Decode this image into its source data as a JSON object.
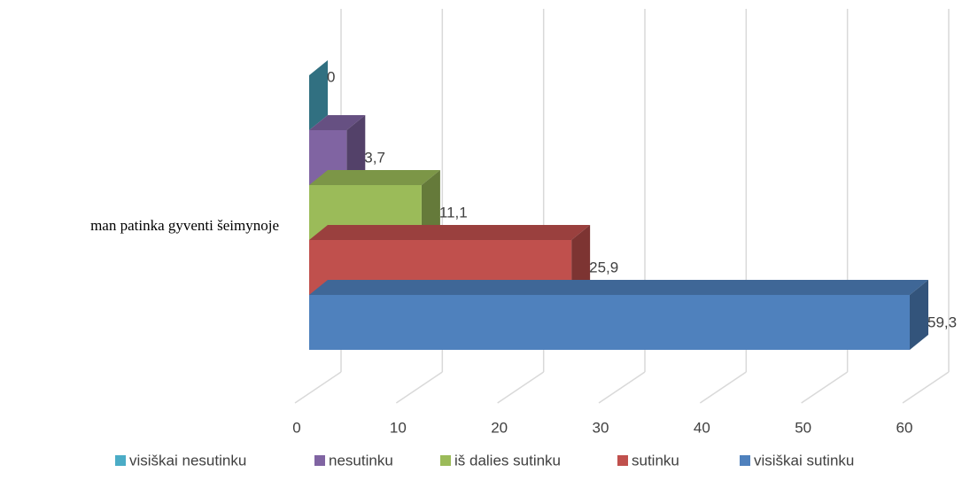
{
  "chart_data": {
    "type": "bar3d_horizontal",
    "categories": [
      "man patinka gyventi šeimynoje"
    ],
    "series": [
      {
        "name": "visiškai nesutinku",
        "color": "#4bacc6",
        "values": [
          0
        ],
        "value_labels": [
          "0"
        ]
      },
      {
        "name": "nesutinku",
        "color": "#8064a2",
        "values": [
          3.7
        ],
        "value_labels": [
          "3,7"
        ]
      },
      {
        "name": "iš dalies sutinku",
        "color": "#9bbb59",
        "values": [
          11.1
        ],
        "value_labels": [
          "11,1"
        ]
      },
      {
        "name": "sutinku",
        "color": "#c0504d",
        "values": [
          25.9
        ],
        "value_labels": [
          "25,9"
        ]
      },
      {
        "name": "visiškai sutinku",
        "color": "#4f81bd",
        "values": [
          59.3
        ],
        "value_labels": [
          "59,3"
        ]
      }
    ],
    "xlim": [
      0,
      60
    ],
    "xticks": [
      0,
      10,
      20,
      30,
      40,
      50,
      60
    ],
    "grid": true,
    "legend": "bottom"
  }
}
